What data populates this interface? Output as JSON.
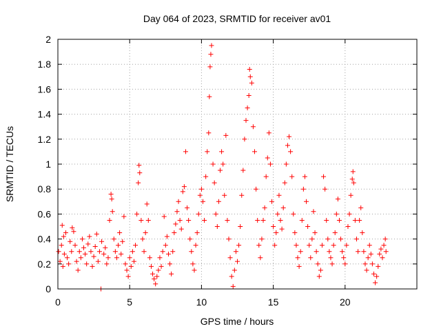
{
  "chart_data": {
    "type": "scatter",
    "title": "Day 064 of 2023, SRMTID for receiver av01",
    "xlabel": "GPS time / hours",
    "ylabel": "SRMTID / TECUs",
    "xlim": [
      0,
      25
    ],
    "ylim": [
      0,
      2
    ],
    "x_ticks": [
      0,
      5,
      10,
      15,
      20
    ],
    "y_ticks": [
      0,
      0.2,
      0.4,
      0.6,
      0.8,
      1,
      1.2,
      1.4,
      1.6,
      1.8,
      2
    ],
    "x_tick_labels": [
      "0",
      "5",
      "10",
      "15",
      "20"
    ],
    "y_tick_labels": [
      "0",
      "0.2",
      "0.4",
      "0.6",
      "0.8",
      "1",
      "1.2",
      "1.4",
      "1.6",
      "1.8",
      "2"
    ],
    "grid": true,
    "marker": "+",
    "color": "#ff0000",
    "series": [
      {
        "name": "av01",
        "points": [
          [
            0.05,
            0.3
          ],
          [
            0.15,
            0.22
          ],
          [
            0.25,
            0.35
          ],
          [
            0.35,
            0.18
          ],
          [
            0.45,
            0.28
          ],
          [
            0.55,
            0.45
          ],
          [
            0.65,
            0.25
          ],
          [
            0.75,
            0.2
          ],
          [
            0.85,
            0.38
          ],
          [
            0.95,
            0.3
          ],
          [
            0.3,
            0.51
          ],
          [
            0.4,
            0.42
          ],
          [
            1.0,
            0.49
          ],
          [
            1.1,
            0.46
          ],
          [
            1.2,
            0.35
          ],
          [
            1.3,
            0.22
          ],
          [
            1.4,
            0.15
          ],
          [
            1.5,
            0.3
          ],
          [
            1.6,
            0.25
          ],
          [
            1.7,
            0.4
          ],
          [
            1.8,
            0.33
          ],
          [
            1.9,
            0.28
          ],
          [
            2.0,
            0.2
          ],
          [
            2.1,
            0.36
          ],
          [
            2.2,
            0.42
          ],
          [
            2.3,
            0.3
          ],
          [
            2.4,
            0.18
          ],
          [
            2.5,
            0.26
          ],
          [
            2.6,
            0.34
          ],
          [
            2.7,
            0.44
          ],
          [
            2.8,
            0.22
          ],
          [
            2.9,
            0.3
          ],
          [
            3.0,
            0.0
          ],
          [
            3.05,
            0.38
          ],
          [
            3.2,
            0.28
          ],
          [
            3.3,
            0.33
          ],
          [
            3.4,
            0.2
          ],
          [
            3.5,
            0.25
          ],
          [
            3.6,
            0.55
          ],
          [
            3.7,
            0.76
          ],
          [
            3.75,
            0.72
          ],
          [
            3.8,
            0.62
          ],
          [
            3.9,
            0.4
          ],
          [
            4.0,
            0.3
          ],
          [
            4.1,
            0.25
          ],
          [
            4.2,
            0.35
          ],
          [
            4.3,
            0.45
          ],
          [
            4.4,
            0.28
          ],
          [
            4.5,
            0.38
          ],
          [
            4.6,
            0.58
          ],
          [
            4.7,
            0.2
          ],
          [
            4.8,
            0.15
          ],
          [
            4.9,
            0.1
          ],
          [
            5.0,
            0.25
          ],
          [
            5.1,
            0.18
          ],
          [
            5.2,
            0.3
          ],
          [
            5.3,
            0.22
          ],
          [
            5.4,
            0.35
          ],
          [
            5.5,
            0.6
          ],
          [
            5.6,
            0.85
          ],
          [
            5.65,
            0.99
          ],
          [
            5.7,
            0.93
          ],
          [
            5.8,
            0.55
          ],
          [
            5.9,
            0.4
          ],
          [
            6.0,
            0.3
          ],
          [
            6.1,
            0.45
          ],
          [
            6.2,
            0.68
          ],
          [
            6.3,
            0.55
          ],
          [
            6.4,
            0.25
          ],
          [
            6.5,
            0.18
          ],
          [
            6.6,
            0.12
          ],
          [
            6.7,
            0.08
          ],
          [
            6.8,
            0.04
          ],
          [
            6.9,
            0.1
          ],
          [
            7.0,
            0.15
          ],
          [
            7.1,
            0.25
          ],
          [
            7.2,
            0.18
          ],
          [
            7.3,
            0.3
          ],
          [
            7.4,
            0.58
          ],
          [
            7.5,
            0.35
          ],
          [
            7.6,
            0.42
          ],
          [
            7.7,
            0.28
          ],
          [
            7.8,
            0.2
          ],
          [
            7.9,
            0.12
          ],
          [
            8.0,
            0.3
          ],
          [
            8.1,
            0.45
          ],
          [
            8.2,
            0.52
          ],
          [
            8.3,
            0.62
          ],
          [
            8.4,
            0.7
          ],
          [
            8.5,
            0.55
          ],
          [
            8.6,
            0.48
          ],
          [
            8.7,
            0.78
          ],
          [
            8.8,
            0.82
          ],
          [
            8.9,
            1.1
          ],
          [
            9.0,
            0.65
          ],
          [
            9.1,
            0.55
          ],
          [
            9.2,
            0.4
          ],
          [
            9.3,
            0.3
          ],
          [
            9.4,
            0.2
          ],
          [
            9.5,
            0.15
          ],
          [
            9.6,
            0.35
          ],
          [
            9.7,
            0.45
          ],
          [
            9.8,
            0.6
          ],
          [
            9.9,
            0.75
          ],
          [
            10.0,
            0.8
          ],
          [
            10.1,
            0.7
          ],
          [
            10.2,
            0.55
          ],
          [
            10.3,
            0.9
          ],
          [
            10.4,
            1.1
          ],
          [
            10.5,
            1.25
          ],
          [
            10.55,
            1.54
          ],
          [
            10.6,
            1.78
          ],
          [
            10.65,
            1.88
          ],
          [
            10.7,
            1.95
          ],
          [
            10.8,
            1.0
          ],
          [
            10.9,
            0.85
          ],
          [
            11.0,
            0.6
          ],
          [
            11.1,
            0.5
          ],
          [
            11.2,
            0.7
          ],
          [
            11.3,
            0.95
          ],
          [
            11.4,
            1.1
          ],
          [
            11.5,
            1.0
          ],
          [
            11.6,
            0.75
          ],
          [
            11.7,
            1.23
          ],
          [
            11.8,
            0.55
          ],
          [
            11.9,
            0.4
          ],
          [
            12.0,
            0.25
          ],
          [
            12.1,
            0.1
          ],
          [
            12.2,
            0.02
          ],
          [
            12.3,
            0.15
          ],
          [
            12.4,
            0.3
          ],
          [
            12.5,
            0.22
          ],
          [
            12.6,
            0.35
          ],
          [
            12.7,
            0.5
          ],
          [
            12.8,
            0.75
          ],
          [
            12.9,
            0.95
          ],
          [
            13.0,
            1.2
          ],
          [
            13.1,
            1.35
          ],
          [
            13.2,
            1.45
          ],
          [
            13.3,
            1.55
          ],
          [
            13.35,
            1.76
          ],
          [
            13.4,
            1.7
          ],
          [
            13.5,
            1.65
          ],
          [
            13.6,
            1.3
          ],
          [
            13.7,
            1.1
          ],
          [
            13.8,
            0.8
          ],
          [
            13.9,
            0.55
          ],
          [
            14.0,
            0.35
          ],
          [
            14.1,
            0.25
          ],
          [
            14.2,
            0.4
          ],
          [
            14.3,
            0.55
          ],
          [
            14.4,
            0.65
          ],
          [
            14.5,
            0.9
          ],
          [
            14.6,
            1.05
          ],
          [
            14.7,
            1.25
          ],
          [
            14.8,
            1.0
          ],
          [
            14.9,
            0.7
          ],
          [
            15.0,
            0.5
          ],
          [
            15.1,
            0.35
          ],
          [
            15.2,
            0.45
          ],
          [
            15.3,
            0.6
          ],
          [
            15.4,
            0.75
          ],
          [
            15.5,
            0.55
          ],
          [
            15.6,
            0.48
          ],
          [
            15.7,
            0.65
          ],
          [
            15.8,
            0.85
          ],
          [
            15.9,
            1.0
          ],
          [
            16.0,
            1.15
          ],
          [
            16.1,
            1.22
          ],
          [
            16.2,
            1.1
          ],
          [
            16.3,
            0.9
          ],
          [
            16.4,
            0.6
          ],
          [
            16.5,
            0.45
          ],
          [
            16.6,
            0.35
          ],
          [
            16.7,
            0.25
          ],
          [
            16.8,
            0.18
          ],
          [
            16.9,
            0.3
          ],
          [
            17.0,
            0.55
          ],
          [
            17.1,
            0.8
          ],
          [
            17.2,
            0.9
          ],
          [
            17.3,
            0.7
          ],
          [
            17.4,
            0.5
          ],
          [
            17.5,
            0.35
          ],
          [
            17.6,
            0.25
          ],
          [
            17.7,
            0.4
          ],
          [
            17.8,
            0.62
          ],
          [
            17.9,
            0.45
          ],
          [
            18.0,
            0.3
          ],
          [
            18.1,
            0.2
          ],
          [
            18.2,
            0.1
          ],
          [
            18.3,
            0.15
          ],
          [
            18.4,
            0.35
          ],
          [
            18.5,
            0.9
          ],
          [
            18.6,
            0.8
          ],
          [
            18.7,
            0.55
          ],
          [
            18.8,
            0.4
          ],
          [
            18.9,
            0.3
          ],
          [
            19.0,
            0.25
          ],
          [
            19.1,
            0.2
          ],
          [
            19.2,
            0.35
          ],
          [
            19.3,
            0.45
          ],
          [
            19.4,
            0.6
          ],
          [
            19.5,
            0.72
          ],
          [
            19.6,
            0.55
          ],
          [
            19.7,
            0.4
          ],
          [
            19.8,
            0.3
          ],
          [
            19.9,
            0.25
          ],
          [
            20.0,
            0.2
          ],
          [
            20.1,
            0.35
          ],
          [
            20.2,
            0.5
          ],
          [
            20.3,
            0.6
          ],
          [
            20.4,
            0.75
          ],
          [
            20.5,
            0.88
          ],
          [
            20.55,
            0.94
          ],
          [
            20.6,
            0.85
          ],
          [
            20.7,
            0.55
          ],
          [
            20.8,
            0.4
          ],
          [
            20.9,
            0.3
          ],
          [
            21.0,
            0.55
          ],
          [
            21.1,
            0.65
          ],
          [
            21.2,
            0.45
          ],
          [
            21.3,
            0.3
          ],
          [
            21.4,
            0.2
          ],
          [
            21.5,
            0.15
          ],
          [
            21.6,
            0.25
          ],
          [
            21.7,
            0.35
          ],
          [
            21.8,
            0.28
          ],
          [
            21.9,
            0.2
          ],
          [
            22.0,
            0.12
          ],
          [
            22.1,
            0.05
          ],
          [
            22.2,
            0.1
          ],
          [
            22.3,
            0.18
          ],
          [
            22.4,
            0.28
          ],
          [
            22.5,
            0.32
          ],
          [
            22.6,
            0.25
          ],
          [
            22.7,
            0.35
          ],
          [
            22.8,
            0.4
          ],
          [
            22.85,
            0.3
          ]
        ]
      }
    ]
  }
}
